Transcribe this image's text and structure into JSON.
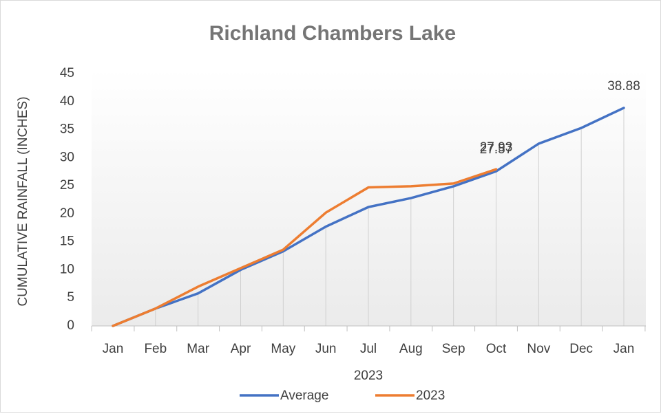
{
  "chart_data": {
    "type": "line",
    "title": "Richland Chambers Lake",
    "x_label": "2023",
    "y_label": "CUMULATIVE RAINFALL (INCHES)",
    "categories": [
      "Jan",
      "Feb",
      "Mar",
      "Apr",
      "May",
      "Jun",
      "Jul",
      "Aug",
      "Sep",
      "Oct",
      "Nov",
      "Dec",
      "Jan"
    ],
    "series": [
      {
        "name": "Average",
        "color": "#4472c4",
        "values": [
          0,
          3.1,
          5.8,
          10,
          13.3,
          17.7,
          21.2,
          22.8,
          24.9,
          27.57,
          32.5,
          35.3,
          38.88
        ],
        "value_labels": [
          null,
          null,
          null,
          null,
          null,
          null,
          null,
          null,
          null,
          "27.57",
          null,
          null,
          "38.88"
        ]
      },
      {
        "name": "2023",
        "color": "#ed7d31",
        "values": [
          0,
          3.1,
          7.0,
          10.3,
          13.6,
          20.2,
          24.7,
          24.9,
          25.4,
          27.93,
          null,
          null,
          null
        ],
        "value_labels": [
          null,
          null,
          null,
          null,
          null,
          null,
          null,
          null,
          null,
          "27.93",
          null,
          null,
          null
        ]
      }
    ],
    "ylim": [
      0,
      45
    ],
    "yticks": [
      0,
      5,
      10,
      15,
      20,
      25,
      30,
      35,
      40,
      45
    ],
    "drop_lines": true,
    "legend": "bottom"
  }
}
